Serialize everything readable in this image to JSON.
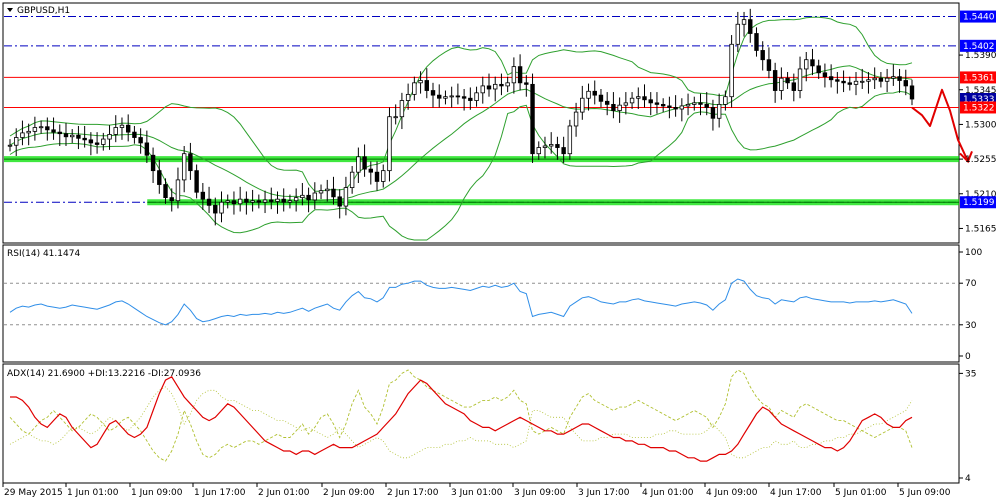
{
  "title": "GBPUSD,H1",
  "colors": {
    "background": "#ffffff",
    "grid": "#c0c0c0",
    "axis": "#000000",
    "candle": "#000000",
    "bollinger": "#2ea02e",
    "resistance": "#ff0000",
    "support": "#00e000",
    "dashdot": "#0000c0",
    "rsi": "#2f8ee8",
    "adx_main": "#e00000",
    "adx_di": "#b0c030",
    "forecast_arrow": "#e00000",
    "price_label_blue": "#0000ff",
    "price_label_red": "#ff0000",
    "price_label_dark": "#0000a0"
  },
  "price_panel": {
    "y_ticks": [
      "1.5390",
      "1.5345",
      "1.5300",
      "1.5255",
      "1.5210",
      "1.5165"
    ],
    "y_tick_values": [
      1.539,
      1.5345,
      1.53,
      1.5255,
      1.521,
      1.5165
    ],
    "ylim": [
      1.515,
      1.5455
    ],
    "dashdot_levels": [
      {
        "value": 1.544,
        "label": "1.5440"
      },
      {
        "value": 1.5402,
        "label": "1.5402"
      },
      {
        "value": 1.5199,
        "label": "1.5199"
      }
    ],
    "red_levels": [
      {
        "value": 1.5361,
        "label": "1.5361"
      },
      {
        "value": 1.5322,
        "label": "1.5322"
      }
    ],
    "current_price": {
      "value": 1.5333,
      "label": "1.5333"
    },
    "green_levels": [
      {
        "value": 1.5255,
        "from": 0.0,
        "to": 1.0
      },
      {
        "value": 1.5199,
        "from": 0.15,
        "to": 1.0
      }
    ]
  },
  "chart_data": {
    "type": "candlestick",
    "title": "GBPUSD,H1",
    "x_labels": [
      "29 May 2015",
      "1 Jun 01:00",
      "1 Jun 09:00",
      "1 Jun 17:00",
      "2 Jun 01:00",
      "2 Jun 09:00",
      "2 Jun 17:00",
      "3 Jun 01:00",
      "3 Jun 09:00",
      "3 Jun 17:00",
      "4 Jun 01:00",
      "4 Jun 09:00",
      "4 Jun 17:00",
      "5 Jun 01:00",
      "5 Jun 09:00"
    ],
    "closes": [
      1.5273,
      1.5283,
      1.5289,
      1.5291,
      1.5296,
      1.5297,
      1.5293,
      1.529,
      1.5288,
      1.5284,
      1.5286,
      1.5282,
      1.528,
      1.5276,
      1.5274,
      1.5281,
      1.5287,
      1.5296,
      1.5299,
      1.529,
      1.5283,
      1.5276,
      1.526,
      1.524,
      1.5222,
      1.5205,
      1.5201,
      1.5228,
      1.5262,
      1.524,
      1.5212,
      1.5203,
      1.5195,
      1.5185,
      1.5199,
      1.5201,
      1.5197,
      1.5203,
      1.5199,
      1.5201,
      1.5199,
      1.5202,
      1.52,
      1.5203,
      1.5199,
      1.5201,
      1.5205,
      1.5208,
      1.5202,
      1.5211,
      1.5214,
      1.5216,
      1.5206,
      1.5194,
      1.5218,
      1.5238,
      1.5258,
      1.5242,
      1.5238,
      1.5226,
      1.524,
      1.531,
      1.531,
      1.5331,
      1.5339,
      1.5354,
      1.5357,
      1.5344,
      1.5338,
      1.5334,
      1.5336,
      1.5337,
      1.5336,
      1.5334,
      1.5331,
      1.5341,
      1.535,
      1.5346,
      1.5352,
      1.535,
      1.5354,
      1.5375,
      1.5354,
      1.5352,
      1.5262,
      1.527,
      1.5272,
      1.5274,
      1.527,
      1.5262,
      1.5298,
      1.5316,
      1.5334,
      1.5343,
      1.5338,
      1.533,
      1.5326,
      1.5318,
      1.5325,
      1.5328,
      1.5334,
      1.5336,
      1.5332,
      1.5328,
      1.5326,
      1.5324,
      1.5322,
      1.532,
      1.5324,
      1.5326,
      1.5328,
      1.5326,
      1.5322,
      1.5308,
      1.5326,
      1.5336,
      1.5404,
      1.543,
      1.5436,
      1.5418,
      1.5396,
      1.5384,
      1.537,
      1.5344,
      1.536,
      1.5354,
      1.5344,
      1.5372,
      1.5384,
      1.5376,
      1.5367,
      1.5362,
      1.5358,
      1.5356,
      1.5354,
      1.5352,
      1.5356,
      1.5356,
      1.5358,
      1.536,
      1.5356,
      1.536,
      1.5362,
      1.5357,
      1.535,
      1.5333
    ],
    "forecast_path_note": "hand-drawn red arrow",
    "levels": [
      "1.5440",
      "1.5402",
      "1.5361",
      "1.5333",
      "1.5322",
      "1.5199"
    ]
  },
  "rsi_panel": {
    "label": "RSI(14) 41.1474",
    "y_ticks": [
      "100",
      "70",
      "30",
      "0"
    ],
    "y_tick_values": [
      100,
      70,
      30,
      0
    ],
    "values": [
      42,
      46,
      48,
      47,
      49,
      50,
      48,
      47,
      46,
      47,
      49,
      48,
      47,
      46,
      45,
      47,
      49,
      52,
      53,
      50,
      46,
      42,
      38,
      35,
      32,
      30,
      33,
      40,
      50,
      44,
      36,
      33,
      34,
      36,
      38,
      39,
      38,
      40,
      39,
      40,
      40,
      41,
      40,
      42,
      41,
      42,
      44,
      46,
      43,
      46,
      48,
      50,
      46,
      44,
      52,
      58,
      62,
      56,
      55,
      52,
      56,
      66,
      66,
      69,
      70,
      72,
      72,
      68,
      66,
      65,
      65,
      66,
      65,
      64,
      63,
      65,
      67,
      66,
      68,
      66,
      67,
      70,
      62,
      60,
      38,
      40,
      41,
      42,
      40,
      38,
      48,
      52,
      56,
      57,
      55,
      52,
      51,
      50,
      52,
      52,
      54,
      55,
      53,
      52,
      51,
      50,
      49,
      48,
      50,
      51,
      52,
      51,
      49,
      44,
      50,
      54,
      70,
      74,
      72,
      64,
      58,
      56,
      55,
      50,
      54,
      53,
      52,
      56,
      57,
      55,
      54,
      53,
      52,
      52,
      52,
      51,
      52,
      52,
      52,
      53,
      52,
      53,
      54,
      52,
      50,
      41
    ]
  },
  "adx_panel": {
    "label": "ADX(14) 21.6900 +DI:13.2216 -DI:27.0936",
    "y_ticks": [
      "35",
      "4"
    ],
    "y_tick_values": [
      35,
      4
    ],
    "adx": [
      28,
      28,
      27,
      25,
      22,
      20,
      19,
      21,
      23,
      22,
      19,
      17,
      15,
      13,
      14,
      17,
      20,
      21,
      19,
      17,
      16,
      17,
      19,
      24,
      29,
      33,
      34,
      31,
      28,
      26,
      24,
      22,
      21,
      22,
      24,
      26,
      25,
      23,
      21,
      19,
      17,
      15,
      14,
      13,
      12,
      12,
      11,
      12,
      12,
      11,
      12,
      13,
      14,
      13,
      13,
      13,
      14,
      15,
      16,
      17,
      19,
      21,
      23,
      26,
      29,
      31,
      33,
      32,
      30,
      28,
      26,
      25,
      24,
      23,
      21,
      20,
      19,
      19,
      18,
      19,
      20,
      21,
      22,
      21,
      20,
      19,
      18,
      18,
      17,
      17,
      18,
      19,
      20,
      20,
      19,
      18,
      17,
      16,
      16,
      15,
      15,
      14,
      14,
      13,
      13,
      13,
      12,
      12,
      11,
      10,
      10,
      9,
      9,
      10,
      11,
      11,
      12,
      14,
      17,
      20,
      23,
      25,
      24,
      22,
      20,
      19,
      18,
      17,
      16,
      15,
      14,
      13,
      13,
      12,
      13,
      15,
      18,
      21,
      22,
      23,
      22,
      20,
      19,
      19,
      21,
      22
    ],
    "plus_di": [
      22,
      20,
      18,
      17,
      19,
      21,
      22,
      24,
      22,
      20,
      18,
      19,
      21,
      23,
      22,
      20,
      18,
      19,
      21,
      22,
      20,
      18,
      15,
      12,
      10,
      9,
      12,
      17,
      24,
      20,
      15,
      11,
      10,
      11,
      13,
      14,
      13,
      14,
      15,
      15,
      14,
      15,
      16,
      17,
      16,
      16,
      18,
      20,
      17,
      19,
      22,
      23,
      20,
      16,
      20,
      26,
      30,
      25,
      23,
      20,
      25,
      32,
      33,
      35,
      36,
      34,
      33,
      31,
      30,
      29,
      28,
      27,
      26,
      25,
      25,
      26,
      27,
      27,
      28,
      27,
      28,
      30,
      27,
      26,
      18,
      17,
      18,
      19,
      18,
      17,
      22,
      25,
      28,
      29,
      27,
      26,
      25,
      24,
      25,
      25,
      26,
      27,
      26,
      25,
      24,
      23,
      22,
      21,
      22,
      23,
      24,
      23,
      22,
      19,
      22,
      26,
      34,
      36,
      35,
      31,
      28,
      26,
      25,
      22,
      24,
      23,
      22,
      25,
      26,
      25,
      24,
      23,
      22,
      21,
      21,
      20,
      19,
      18,
      17,
      16,
      17,
      18,
      19,
      19,
      18,
      13
    ],
    "minus_di": [
      14,
      15,
      16,
      17,
      16,
      15,
      15,
      14,
      15,
      17,
      19,
      19,
      18,
      17,
      18,
      20,
      22,
      21,
      19,
      18,
      20,
      22,
      25,
      28,
      30,
      31,
      29,
      25,
      20,
      23,
      27,
      29,
      30,
      30,
      28,
      27,
      27,
      26,
      25,
      24,
      24,
      23,
      22,
      21,
      21,
      20,
      19,
      18,
      19,
      18,
      17,
      16,
      17,
      19,
      17,
      15,
      13,
      14,
      15,
      16,
      15,
      12,
      11,
      10,
      10,
      11,
      12,
      13,
      13,
      13,
      14,
      14,
      15,
      15,
      16,
      15,
      15,
      15,
      14,
      14,
      14,
      13,
      14,
      15,
      24,
      24,
      23,
      22,
      22,
      22,
      19,
      17,
      15,
      15,
      15,
      16,
      16,
      17,
      17,
      17,
      16,
      16,
      16,
      16,
      17,
      17,
      18,
      18,
      17,
      17,
      17,
      17,
      18,
      20,
      18,
      16,
      11,
      10,
      10,
      11,
      12,
      13,
      13,
      15,
      14,
      14,
      15,
      13,
      13,
      14,
      14,
      15,
      15,
      16,
      16,
      17,
      17,
      18,
      19,
      20,
      20,
      21,
      22,
      23,
      24,
      27
    ]
  }
}
